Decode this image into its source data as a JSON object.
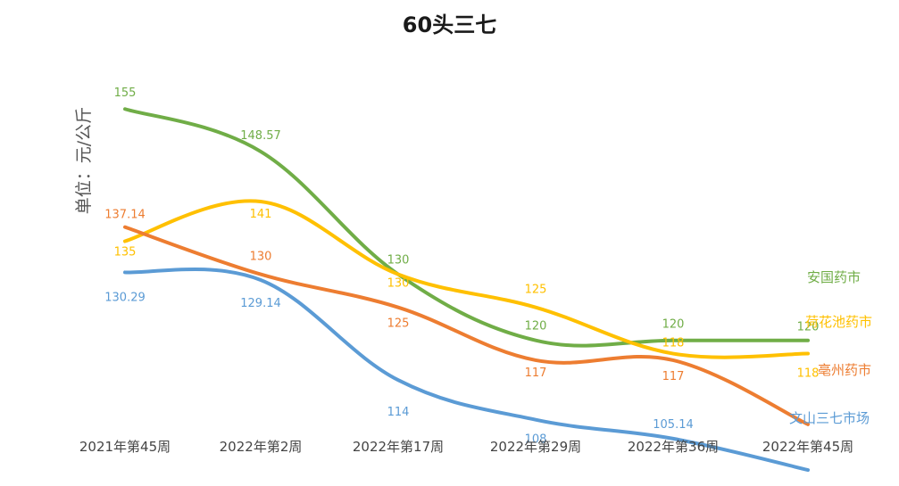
{
  "chart_data": {
    "type": "line",
    "title": "60头三七",
    "ylabel": "单位：元/公斤",
    "xlabel": "",
    "categories": [
      "2021年第45周",
      "2022年第2周",
      "2022年第17周",
      "2022年第29周",
      "2022年第36周",
      "2022年第45周"
    ],
    "ylim": [
      100,
      158
    ],
    "grid": false,
    "legend": "none",
    "series": [
      {
        "name": "安国药市",
        "color": "#70AD47",
        "values": [
          155,
          148.57,
          130,
          120,
          120,
          120
        ]
      },
      {
        "name": "荷花池药市",
        "color": "#FFC000",
        "values": [
          135,
          141,
          130,
          125,
          118,
          118
        ]
      },
      {
        "name": "亳州药市",
        "color": "#ED7D31",
        "values": [
          137.14,
          130,
          125,
          117,
          117,
          null
        ]
      },
      {
        "name": "文山三七市场",
        "color": "#5B9BD5",
        "values": [
          130.29,
          129.14,
          114,
          108,
          105.14,
          null
        ]
      }
    ]
  }
}
